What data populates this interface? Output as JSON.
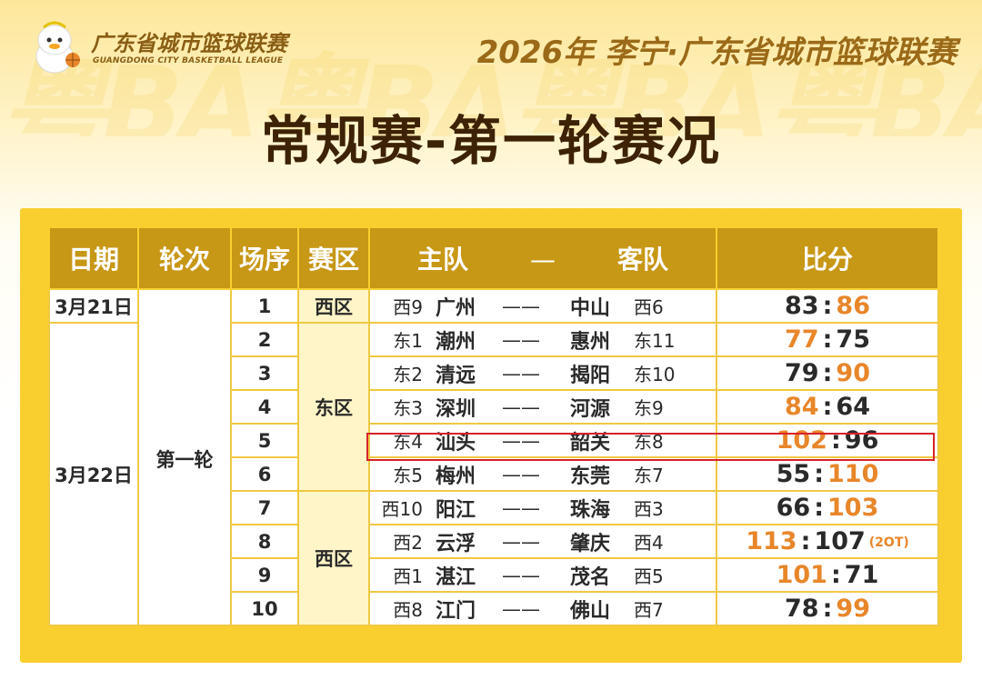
{
  "header": {
    "logo_cn": "广东省城市篮球联赛",
    "logo_en": "GUANGDONG CITY BASKETBALL LEAGUE",
    "event_title": "2026年 李宁·广东省城市篮球联赛",
    "main_title": "常规赛-第一轮赛况",
    "watermark": "粤BA粤BA粤BA粤BA"
  },
  "table": {
    "headers": {
      "date": "日期",
      "round": "轮次",
      "seq": "场序",
      "zone": "赛区",
      "home": "主队",
      "dash": "—",
      "away": "客队",
      "score": "比分"
    },
    "dates": [
      "3月21日",
      "3月22日"
    ],
    "round_label": "第一轮",
    "zones": [
      "西区",
      "东区",
      "西区"
    ],
    "matches": [
      {
        "seq": "1",
        "home_seed": "西9",
        "home": "广州",
        "dash": "——",
        "away": "中山",
        "away_seed": "西6",
        "home_score": "83",
        "away_score": "86",
        "winner": "away",
        "note": ""
      },
      {
        "seq": "2",
        "home_seed": "东1",
        "home": "潮州",
        "dash": "——",
        "away": "惠州",
        "away_seed": "东11",
        "home_score": "77",
        "away_score": "75",
        "winner": "home",
        "note": ""
      },
      {
        "seq": "3",
        "home_seed": "东2",
        "home": "清远",
        "dash": "——",
        "away": "揭阳",
        "away_seed": "东10",
        "home_score": "79",
        "away_score": "90",
        "winner": "away",
        "note": ""
      },
      {
        "seq": "4",
        "home_seed": "东3",
        "home": "深圳",
        "dash": "——",
        "away": "河源",
        "away_seed": "东9",
        "home_score": "84",
        "away_score": "64",
        "winner": "home",
        "note": ""
      },
      {
        "seq": "5",
        "home_seed": "东4",
        "home": "汕头",
        "dash": "——",
        "away": "韶关",
        "away_seed": "东8",
        "home_score": "102",
        "away_score": "96",
        "winner": "home",
        "note": ""
      },
      {
        "seq": "6",
        "home_seed": "东5",
        "home": "梅州",
        "dash": "——",
        "away": "东莞",
        "away_seed": "东7",
        "home_score": "55",
        "away_score": "110",
        "winner": "away",
        "note": ""
      },
      {
        "seq": "7",
        "home_seed": "西10",
        "home": "阳江",
        "dash": "——",
        "away": "珠海",
        "away_seed": "西3",
        "home_score": "66",
        "away_score": "103",
        "winner": "away",
        "note": ""
      },
      {
        "seq": "8",
        "home_seed": "西2",
        "home": "云浮",
        "dash": "——",
        "away": "肇庆",
        "away_seed": "西4",
        "home_score": "113",
        "away_score": "107",
        "winner": "home",
        "note": "(2OT)"
      },
      {
        "seq": "9",
        "home_seed": "西1",
        "home": "湛江",
        "dash": "——",
        "away": "茂名",
        "away_seed": "西5",
        "home_score": "101",
        "away_score": "71",
        "winner": "home",
        "note": ""
      },
      {
        "seq": "10",
        "home_seed": "西8",
        "home": "江门",
        "dash": "——",
        "away": "佛山",
        "away_seed": "西7",
        "home_score": "78",
        "away_score": "99",
        "winner": "away",
        "note": ""
      }
    ],
    "score_separator": ":"
  },
  "colors": {
    "panel": "#f8cf2f",
    "header_bg": "#c79716",
    "winner": "#e8862a",
    "highlight": "#d8232a"
  }
}
